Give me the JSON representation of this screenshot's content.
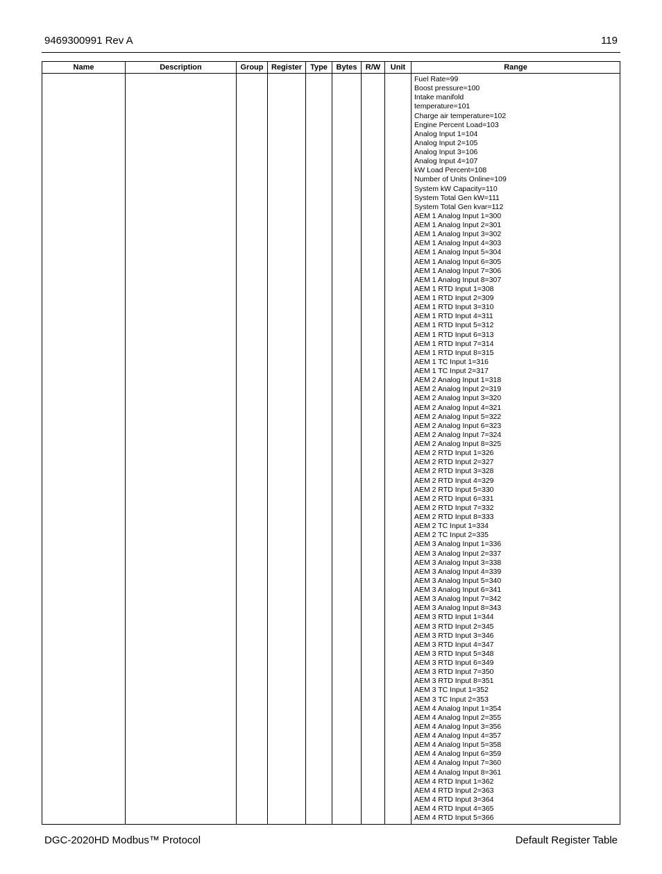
{
  "header": {
    "doc_ref": "9469300991 Rev A",
    "page_number": "119"
  },
  "footer": {
    "left": "DGC-2020HD Modbus™ Protocol",
    "right": "Default Register Table"
  },
  "table": {
    "columns": [
      "Name",
      "Description",
      "Group",
      "Register",
      "Type",
      "Bytes",
      "R/W",
      "Unit",
      "Range"
    ],
    "row": {
      "name": "",
      "description": "",
      "group": "",
      "register": "",
      "type": "",
      "bytes": "",
      "rw": "",
      "unit": "",
      "range": [
        "Fuel Rate=99",
        "Boost pressure=100",
        "Intake manifold",
        "temperature=101",
        "Charge air temperature=102",
        "Engine Percent Load=103",
        "Analog Input 1=104",
        "Analog Input 2=105",
        "Analog Input 3=106",
        "Analog Input 4=107",
        "kW Load Percent=108",
        "Number of Units Online=109",
        "System kW Capacity=110",
        "System Total Gen kW=111",
        "System Total Gen kvar=112",
        "AEM 1 Analog Input 1=300",
        "AEM 1 Analog Input 2=301",
        "AEM 1 Analog Input 3=302",
        "AEM 1 Analog Input 4=303",
        "AEM 1 Analog Input 5=304",
        "AEM 1 Analog Input 6=305",
        "AEM 1 Analog Input 7=306",
        "AEM 1 Analog Input 8=307",
        "AEM 1 RTD Input 1=308",
        "AEM 1 RTD Input 2=309",
        "AEM 1 RTD Input 3=310",
        "AEM 1 RTD Input 4=311",
        "AEM 1 RTD Input 5=312",
        "AEM 1 RTD Input 6=313",
        "AEM 1 RTD Input 7=314",
        "AEM 1 RTD Input 8=315",
        "AEM 1 TC Input 1=316",
        "AEM 1 TC Input 2=317",
        "AEM 2 Analog Input 1=318",
        "AEM 2 Analog Input 2=319",
        "AEM 2 Analog Input 3=320",
        "AEM 2 Analog Input 4=321",
        "AEM 2 Analog Input 5=322",
        "AEM 2 Analog Input 6=323",
        "AEM 2 Analog Input 7=324",
        "AEM 2 Analog Input 8=325",
        "AEM 2 RTD Input 1=326",
        "AEM 2 RTD Input 2=327",
        "AEM 2 RTD Input 3=328",
        "AEM 2 RTD Input 4=329",
        "AEM 2 RTD Input 5=330",
        "AEM 2 RTD Input 6=331",
        "AEM 2 RTD Input 7=332",
        "AEM 2 RTD Input 8=333",
        "AEM 2 TC Input 1=334",
        "AEM 2 TC Input 2=335",
        "AEM 3 Analog Input 1=336",
        "AEM 3 Analog Input 2=337",
        "AEM 3 Analog Input 3=338",
        "AEM 3 Analog Input 4=339",
        "AEM 3 Analog Input 5=340",
        "AEM 3 Analog Input 6=341",
        "AEM 3 Analog Input 7=342",
        "AEM 3 Analog Input 8=343",
        "AEM 3 RTD Input 1=344",
        "AEM 3 RTD Input 2=345",
        "AEM 3 RTD Input 3=346",
        "AEM 3 RTD Input 4=347",
        "AEM 3 RTD Input 5=348",
        "AEM 3 RTD Input 6=349",
        "AEM 3 RTD Input 7=350",
        "AEM 3 RTD Input 8=351",
        "AEM 3 TC Input 1=352",
        "AEM 3 TC Input 2=353",
        "AEM 4 Analog Input 1=354",
        "AEM 4 Analog Input 2=355",
        "AEM 4 Analog Input 3=356",
        "AEM 4 Analog Input 4=357",
        "AEM 4 Analog Input 5=358",
        "AEM 4 Analog Input 6=359",
        "AEM 4 Analog Input 7=360",
        "AEM 4 Analog Input 8=361",
        "AEM 4 RTD Input 1=362",
        "AEM 4 RTD Input 2=363",
        "AEM 4 RTD Input 3=364",
        "AEM 4 RTD Input 4=365",
        "AEM 4 RTD Input 5=366"
      ]
    }
  }
}
